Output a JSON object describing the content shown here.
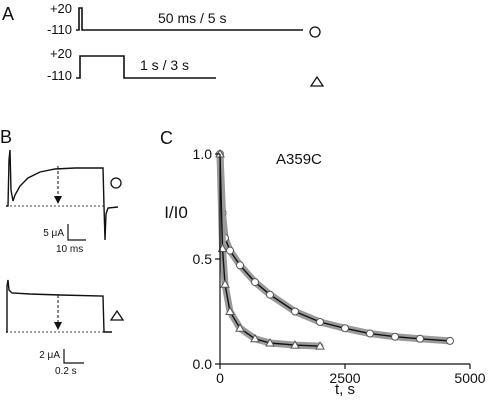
{
  "panels": {
    "A": {
      "label": "A",
      "protocol1": {
        "v_top": "+20",
        "v_bottom": "-110",
        "caption": "50 ms / 5 s",
        "marker": "circle"
      },
      "protocol2": {
        "v_top": "+20",
        "v_bottom": "-110",
        "caption": "1 s / 3 s",
        "marker": "triangle"
      }
    },
    "B": {
      "label": "B",
      "trace1": {
        "scale_current": "5 μA",
        "scale_time": "10 ms",
        "marker": "circle"
      },
      "trace2": {
        "scale_current": "2 μA",
        "scale_time": "0.2 s",
        "marker": "triangle"
      }
    },
    "C": {
      "label": "C",
      "title": "A359C"
    }
  },
  "chart_data": {
    "type": "scatter",
    "title": "A359C",
    "xlabel": "t, s",
    "ylabel": "I/I0",
    "xlim": [
      0,
      5000
    ],
    "ylim": [
      0,
      1.0
    ],
    "xticks": [
      0,
      2500,
      5000
    ],
    "yticks": [
      0.0,
      0.5,
      1.0
    ],
    "grid": false,
    "series": [
      {
        "marker": "circle",
        "color": "#9a9a9a",
        "fit_color": "#111111",
        "x": [
          0,
          50,
          100,
          200,
          400,
          700,
          1000,
          1500,
          2000,
          2500,
          3000,
          3500,
          4000,
          4600
        ],
        "y": [
          1.0,
          0.72,
          0.6,
          0.54,
          0.47,
          0.39,
          0.33,
          0.25,
          0.2,
          0.17,
          0.145,
          0.13,
          0.12,
          0.11
        ]
      },
      {
        "marker": "triangle",
        "color": "#9a9a9a",
        "fit_color": "#111111",
        "x": [
          0,
          50,
          100,
          200,
          400,
          700,
          1000,
          1500,
          2000
        ],
        "y": [
          1.0,
          0.55,
          0.38,
          0.25,
          0.17,
          0.12,
          0.1,
          0.09,
          0.085
        ]
      }
    ]
  }
}
